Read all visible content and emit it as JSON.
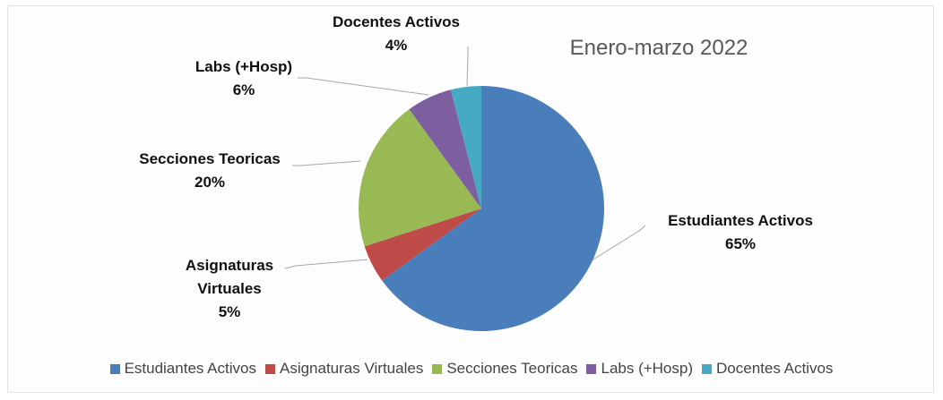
{
  "chart_data": {
    "type": "pie",
    "title": "Enero-marzo 2022",
    "categories": [
      "Estudiantes Activos",
      "Asignaturas Virtuales",
      "Secciones Teoricas",
      "Labs (+Hosp)",
      "Docentes Activos"
    ],
    "values": [
      65,
      5,
      20,
      6,
      4
    ],
    "value_labels": [
      "65%",
      "5%",
      "20%",
      "6%",
      "4%"
    ],
    "colors": [
      "#4a7ebb",
      "#be4b48",
      "#98b954",
      "#7d5fa0",
      "#46aac5"
    ],
    "legend": "bottom"
  }
}
